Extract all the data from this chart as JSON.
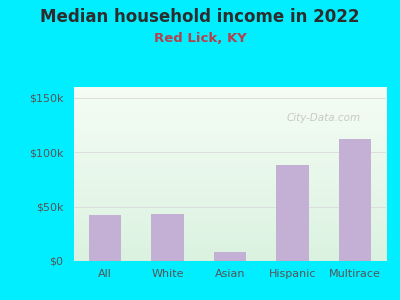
{
  "title": "Median household income in 2022",
  "subtitle": "Red Lick, KY",
  "categories": [
    "All",
    "White",
    "Asian",
    "Hispanic",
    "Multirace"
  ],
  "values": [
    42000,
    43000,
    8000,
    88000,
    112000
  ],
  "bar_color": "#c4b0d5",
  "title_color": "#2d2d2d",
  "subtitle_color": "#b5404a",
  "bg_color": "#00eeff",
  "plot_bg_topleft": "#d6edda",
  "plot_bg_topright": "#f5f5f5",
  "plot_bg_bottom": "#ffffff",
  "yticks": [
    0,
    50000,
    100000,
    150000
  ],
  "ytick_labels": [
    "$0",
    "$50k",
    "$100k",
    "$150k"
  ],
  "ylim": [
    0,
    160000
  ],
  "watermark": "City-Data.com",
  "title_fontsize": 12,
  "subtitle_fontsize": 9.5,
  "tick_fontsize": 8,
  "bar_width": 0.52,
  "tick_color": "#555555"
}
